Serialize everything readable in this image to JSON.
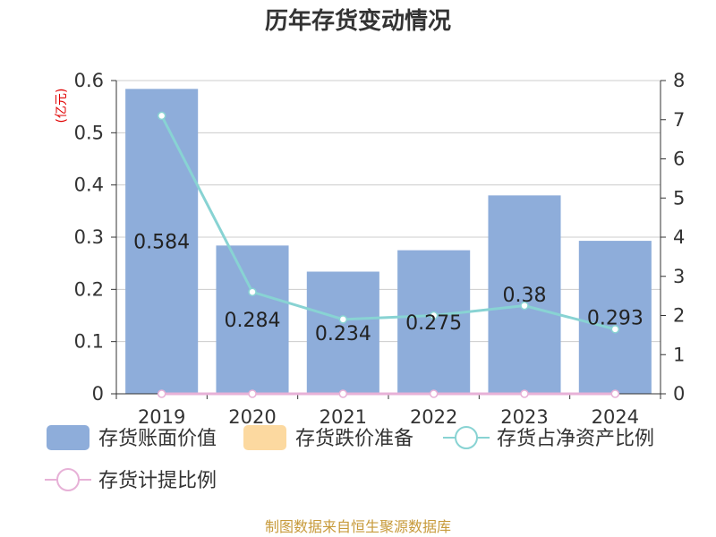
{
  "chart_data": {
    "type": "bar",
    "title": "历年存货变动情况",
    "unit_label": "(亿元)",
    "categories": [
      "2019",
      "2020",
      "2021",
      "2022",
      "2023",
      "2024"
    ],
    "ylim_left": [
      0,
      0.6
    ],
    "yticks_left": [
      "0",
      "0.1",
      "0.2",
      "0.3",
      "0.4",
      "0.5",
      "0.6"
    ],
    "ylim_right": [
      0,
      8
    ],
    "yticks_right": [
      "0",
      "1",
      "2",
      "3",
      "4",
      "5",
      "6",
      "7",
      "8"
    ],
    "grid": true,
    "legend_position": "bottom",
    "series": [
      {
        "name": "存货账面价值",
        "type": "bar",
        "axis": "left",
        "color": "#8eadda",
        "values": [
          0.584,
          0.284,
          0.234,
          0.275,
          0.38,
          0.293
        ],
        "labels": [
          "0.584",
          "0.284",
          "0.234",
          "0.275",
          "0.38",
          "0.293"
        ]
      },
      {
        "name": "存货跌价准备",
        "type": "bar",
        "axis": "left",
        "color": "#fcd9a0",
        "values": [
          0,
          0,
          0,
          0,
          0,
          0
        ]
      },
      {
        "name": "存货占净资产比例",
        "type": "line",
        "axis": "right",
        "color": "#88d3d3",
        "values": [
          7.1,
          2.6,
          1.9,
          2.0,
          2.25,
          1.65
        ]
      },
      {
        "name": "存货计提比例",
        "type": "line",
        "axis": "right",
        "color": "#e7b1d7",
        "values": [
          0,
          0,
          0,
          0,
          0,
          0
        ]
      }
    ]
  },
  "source_text": "制图数据来自恒生聚源数据库"
}
